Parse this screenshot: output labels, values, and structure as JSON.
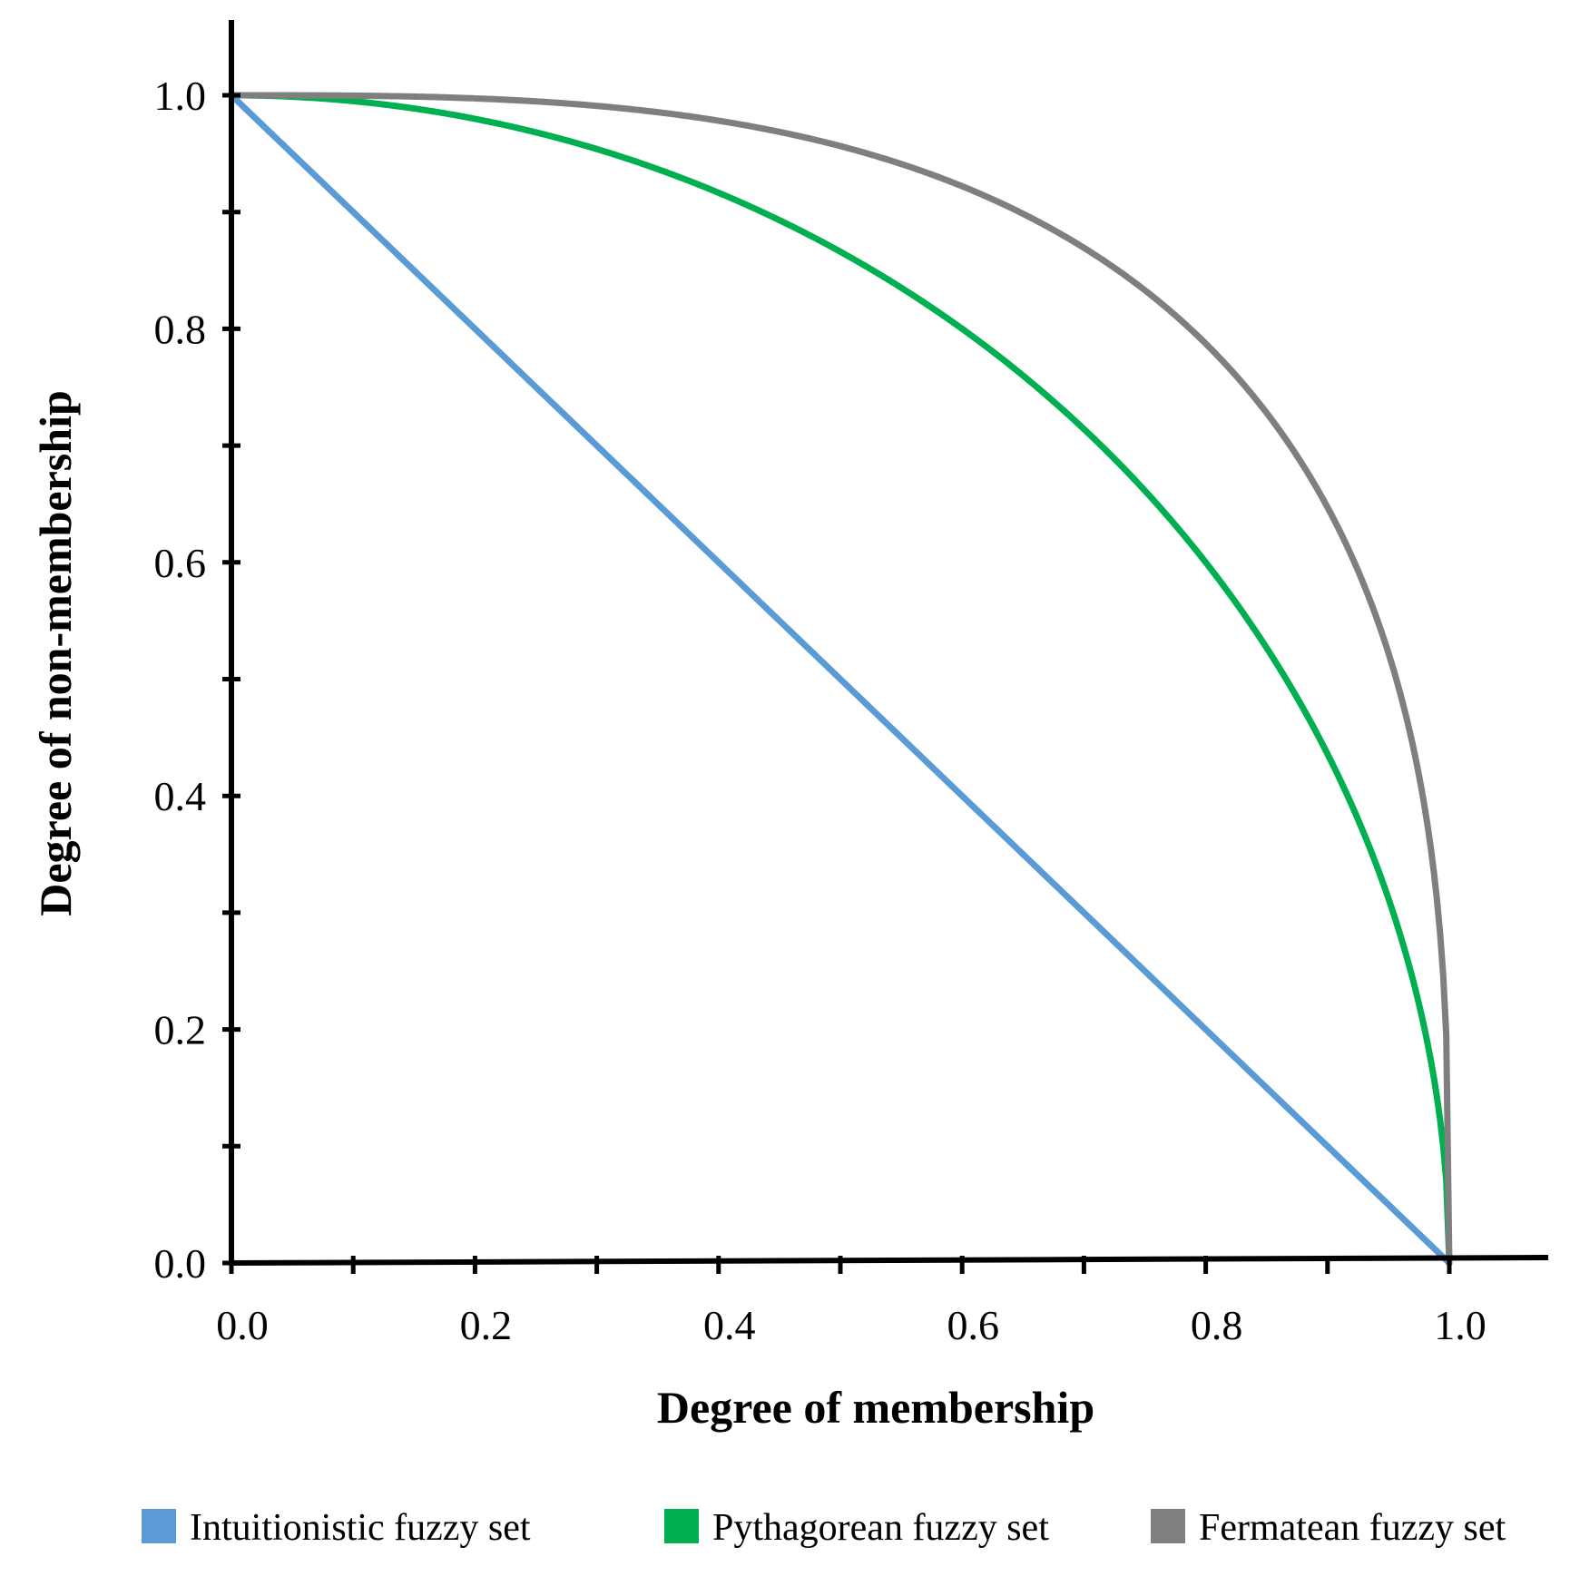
{
  "chart_data": {
    "type": "line",
    "title": "",
    "xlabel": "Degree of membership",
    "ylabel": "Degree of non-membership",
    "xlim": [
      0,
      1
    ],
    "ylim": [
      0,
      1
    ],
    "x_ticks": [
      "0.0",
      "0.2",
      "0.4",
      "0.6",
      "0.8",
      "1.0"
    ],
    "y_ticks": [
      "0.0",
      "0.2",
      "0.4",
      "0.6",
      "0.8",
      "1.0"
    ],
    "grid": false,
    "legend_position": "bottom",
    "series": [
      {
        "name": "Intuitionistic fuzzy set",
        "color": "#5b9bd5",
        "exponent": 1,
        "x": [
          0,
          0.2,
          0.4,
          0.6,
          0.8,
          1.0
        ],
        "y": [
          1.0,
          0.8,
          0.6,
          0.4,
          0.2,
          0.0
        ]
      },
      {
        "name": "Pythagorean fuzzy set",
        "color": "#00b050",
        "exponent": 2,
        "x": [
          0,
          0.2,
          0.4,
          0.6,
          0.8,
          1.0
        ],
        "y": [
          1.0,
          0.98,
          0.917,
          0.8,
          0.6,
          0.0
        ]
      },
      {
        "name": "Fermatean fuzzy set",
        "color": "#7f7f7f",
        "exponent": 3,
        "x": [
          0,
          0.2,
          0.4,
          0.6,
          0.8,
          1.0
        ],
        "y": [
          1.0,
          0.997,
          0.978,
          0.923,
          0.8,
          0.0
        ]
      }
    ]
  }
}
